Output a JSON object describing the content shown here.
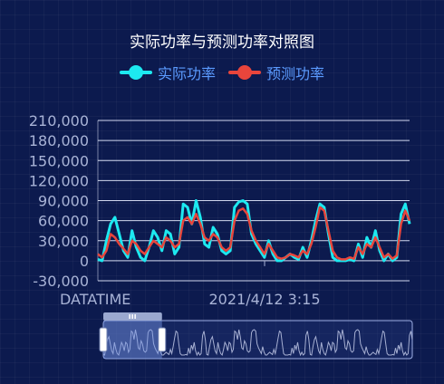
{
  "header": {
    "title": "实际功率与预测功率对照图"
  },
  "legend": [
    {
      "label": "实际功率",
      "color": "#1de9f0",
      "text_color": "#5b9bff"
    },
    {
      "label": "预测功率",
      "color": "#e8453c",
      "text_color": "#5b9bff"
    }
  ],
  "colors": {
    "actual": "#1de9f0",
    "predicted": "#e8453c",
    "grid": "#e6ecff",
    "tick_text": "#a8b3d6",
    "slider": "#8fa4e8"
  },
  "chart_data": {
    "type": "line",
    "xlabel": "DATATIME",
    "x_tick_labels": [
      "2021/4/12 3:15"
    ],
    "ylim": [
      -30000,
      210000
    ],
    "y_ticks": [
      -30000,
      0,
      30000,
      60000,
      90000,
      120000,
      150000,
      180000,
      210000
    ],
    "y_tick_labels": [
      "-30,000",
      "0",
      "30,000",
      "60,000",
      "90,000",
      "120,000",
      "150,000",
      "180,000",
      "210,000"
    ],
    "grid": true,
    "legend_position": "top-center",
    "dataZoom": {
      "start": 0,
      "end": 19
    },
    "series": [
      {
        "name": "实际功率",
        "color": "#1de9f0",
        "values": [
          2000,
          0,
          30000,
          55000,
          65000,
          40000,
          15000,
          5000,
          45000,
          20000,
          5000,
          0,
          20000,
          45000,
          35000,
          15000,
          45000,
          40000,
          10000,
          20000,
          85000,
          80000,
          55000,
          90000,
          65000,
          25000,
          20000,
          50000,
          40000,
          15000,
          10000,
          15000,
          80000,
          88000,
          90000,
          85000,
          40000,
          25000,
          15000,
          5000,
          30000,
          10000,
          0,
          0,
          5000,
          10000,
          5000,
          2000,
          20000,
          5000,
          30000,
          60000,
          85000,
          80000,
          40000,
          5000,
          0,
          0,
          0,
          2000,
          0,
          25000,
          5000,
          35000,
          20000,
          45000,
          15000,
          0,
          10000,
          0,
          5000,
          70000,
          85000,
          55000
        ]
      },
      {
        "name": "预测功率",
        "color": "#e8453c",
        "values": [
          10000,
          5000,
          15000,
          40000,
          35000,
          25000,
          18000,
          10000,
          30000,
          25000,
          15000,
          10000,
          20000,
          30000,
          25000,
          20000,
          35000,
          30000,
          20000,
          25000,
          60000,
          65000,
          55000,
          70000,
          55000,
          35000,
          30000,
          40000,
          35000,
          20000,
          15000,
          20000,
          60000,
          75000,
          78000,
          70000,
          45000,
          30000,
          20000,
          10000,
          25000,
          15000,
          5000,
          3000,
          5000,
          10000,
          8000,
          5000,
          15000,
          10000,
          25000,
          50000,
          80000,
          75000,
          45000,
          15000,
          5000,
          2000,
          2000,
          5000,
          3000,
          20000,
          10000,
          25000,
          20000,
          35000,
          20000,
          5000,
          10000,
          3000,
          8000,
          55000,
          75000,
          60000
        ]
      }
    ]
  }
}
